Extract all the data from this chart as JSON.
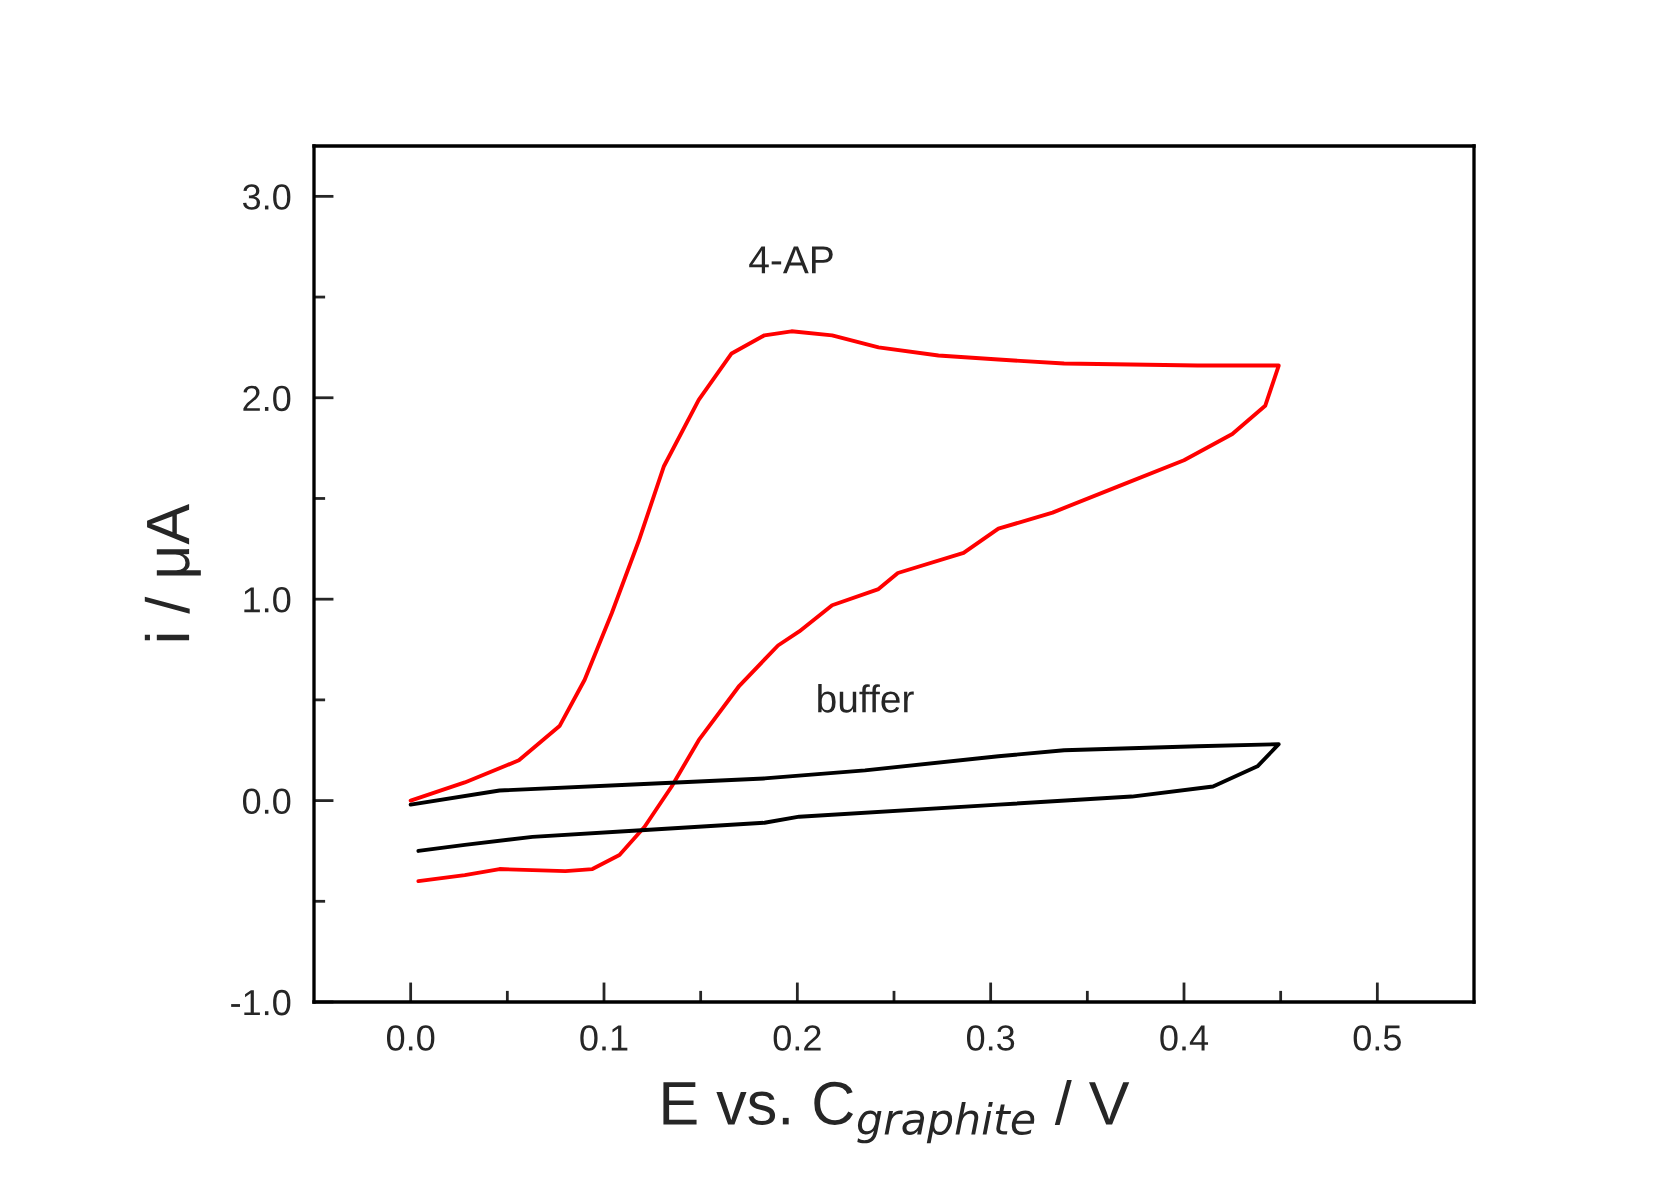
{
  "chart_data": {
    "type": "line",
    "xlabel": "E vs. C$_{graphite}$ / V",
    "ylabel": "i / μA",
    "xlim": [
      -0.05,
      0.55
    ],
    "ylim": [
      -1.0,
      3.25
    ],
    "xticks": [
      {
        "value": 0.0,
        "label": "0.0"
      },
      {
        "value": 0.05,
        "label": null
      },
      {
        "value": 0.1,
        "label": "0.1"
      },
      {
        "value": 0.15,
        "label": null
      },
      {
        "value": 0.2,
        "label": "0.2"
      },
      {
        "value": 0.25,
        "label": null
      },
      {
        "value": 0.3,
        "label": "0.3"
      },
      {
        "value": 0.35,
        "label": null
      },
      {
        "value": 0.4,
        "label": "0.4"
      },
      {
        "value": 0.45,
        "label": null
      },
      {
        "value": 0.5,
        "label": "0.5"
      }
    ],
    "yticks": [
      {
        "value": -1.0,
        "label": "-1.0"
      },
      {
        "value": -0.5,
        "label": null
      },
      {
        "value": 0.0,
        "label": "0.0"
      },
      {
        "value": 0.5,
        "label": null
      },
      {
        "value": 1.0,
        "label": "1.0"
      },
      {
        "value": 1.5,
        "label": null
      },
      {
        "value": 2.0,
        "label": "2.0"
      },
      {
        "value": 2.5,
        "label": null
      },
      {
        "value": 3.0,
        "label": "3.0"
      }
    ],
    "grid": false,
    "legend": false,
    "marker": "none",
    "line_style": "solid",
    "series": [
      {
        "name": "4-AP",
        "color": "#ff0000",
        "x": [
          0.0,
          0.028,
          0.056,
          0.077,
          0.09,
          0.104,
          0.118,
          0.131,
          0.149,
          0.166,
          0.183,
          0.197,
          0.218,
          0.242,
          0.273,
          0.304,
          0.338,
          0.407,
          0.449,
          0.442,
          0.425,
          0.4,
          0.366,
          0.332,
          0.304,
          0.286,
          0.252,
          0.242,
          0.218,
          0.201,
          0.19,
          0.17,
          0.149,
          0.135,
          0.121,
          0.108,
          0.094,
          0.08,
          0.046,
          0.028,
          0.004
        ],
        "values": [
          0.0,
          0.09,
          0.2,
          0.37,
          0.6,
          0.93,
          1.29,
          1.66,
          1.99,
          2.22,
          2.31,
          2.33,
          2.31,
          2.25,
          2.21,
          2.19,
          2.17,
          2.16,
          2.16,
          1.96,
          1.82,
          1.69,
          1.56,
          1.43,
          1.35,
          1.23,
          1.13,
          1.05,
          0.97,
          0.84,
          0.77,
          0.57,
          0.3,
          0.07,
          -0.13,
          -0.27,
          -0.34,
          -0.35,
          -0.34,
          -0.37,
          -0.4
        ]
      },
      {
        "name": "buffer",
        "color": "#000000",
        "x": [
          0.0,
          0.046,
          0.115,
          0.183,
          0.235,
          0.304,
          0.338,
          0.407,
          0.449,
          0.438,
          0.415,
          0.373,
          0.304,
          0.201,
          0.183,
          0.115,
          0.063,
          0.028,
          0.004
        ],
        "values": [
          -0.02,
          0.05,
          0.08,
          0.11,
          0.15,
          0.22,
          0.25,
          0.27,
          0.28,
          0.17,
          0.07,
          0.02,
          -0.02,
          -0.08,
          -0.11,
          -0.15,
          -0.18,
          -0.22,
          -0.25
        ]
      }
    ]
  }
}
